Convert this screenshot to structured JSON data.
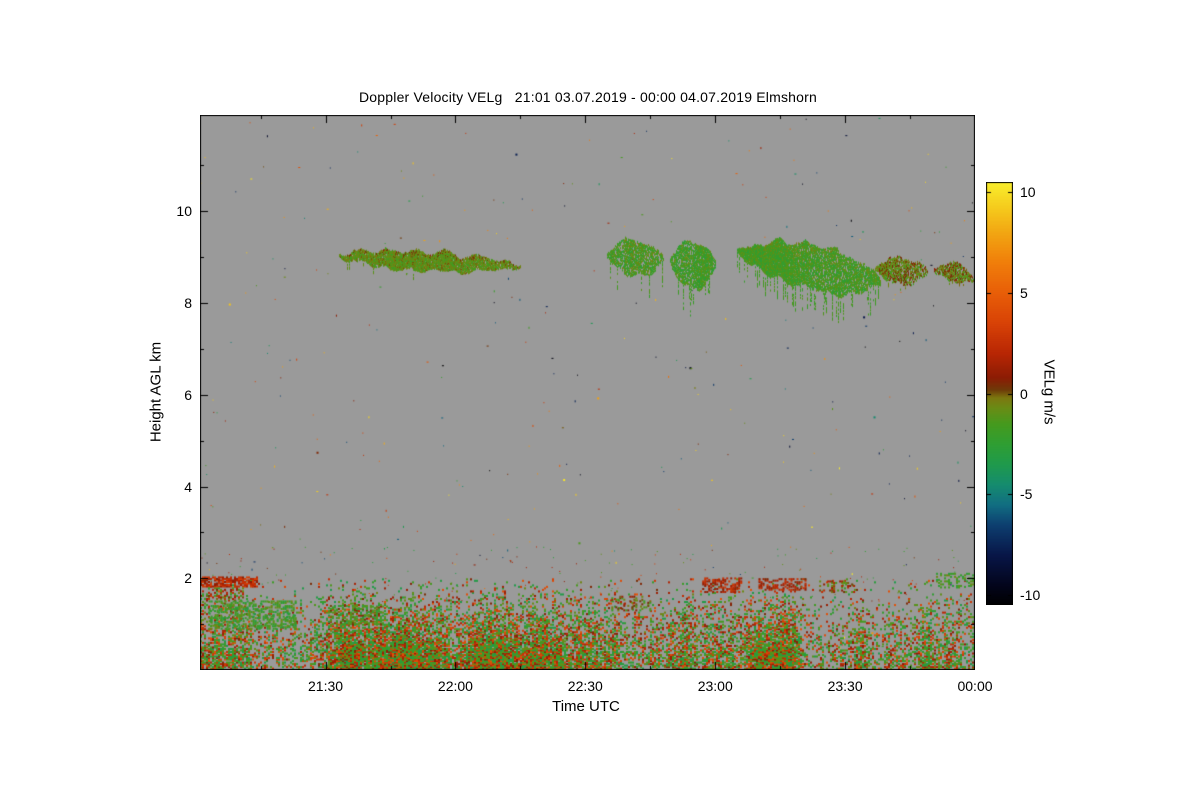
{
  "chart_data": {
    "type": "heatmap",
    "title": "Doppler Velocity VELg   21:01 03.07.2019 - 00:00 04.07.2019 Elmshorn",
    "xlabel": "Time UTC",
    "ylabel": "Height AGL km",
    "site": "Elmshorn",
    "time_start_utc": "21:01 03.07.2019",
    "time_end_utc": "00:00 04.07.2019",
    "plot_bg": "#9a9a9a",
    "frame_color": "#000000",
    "x_range_minutes": [
      0,
      179
    ],
    "x_ticks": [
      {
        "label": "21:30",
        "minute": 29
      },
      {
        "label": "22:00",
        "minute": 59
      },
      {
        "label": "22:30",
        "minute": 89
      },
      {
        "label": "23:00",
        "minute": 119
      },
      {
        "label": "23:30",
        "minute": 149
      },
      {
        "label": "00:00",
        "minute": 179
      }
    ],
    "x_minor_step_minutes": 15,
    "y_range_km": [
      0,
      12.1
    ],
    "y_ticks_km": [
      2,
      4,
      6,
      8,
      10
    ],
    "y_minor_ticks_km": [
      1,
      3,
      5,
      7,
      9,
      11
    ],
    "colorbar": {
      "label": "VELg m/s",
      "units": "m/s",
      "range": [
        -10.5,
        10.5
      ],
      "ticks": [
        10,
        5,
        0,
        -5,
        -10
      ],
      "stops": [
        [
          -10.5,
          "#000000"
        ],
        [
          -9.5,
          "#03051c"
        ],
        [
          -8.0,
          "#081648"
        ],
        [
          -6.5,
          "#0d3f70"
        ],
        [
          -5.5,
          "#116e82"
        ],
        [
          -4.5,
          "#158c6e"
        ],
        [
          -3.5,
          "#1f9a4c"
        ],
        [
          -2.5,
          "#2f9e33"
        ],
        [
          -1.5,
          "#459a1e"
        ],
        [
          -0.7,
          "#6a8c15"
        ],
        [
          -0.2,
          "#7c7810"
        ],
        [
          0.2,
          "#6e3a08"
        ],
        [
          0.8,
          "#8c1c04"
        ],
        [
          2.0,
          "#b82604"
        ],
        [
          3.5,
          "#d84206"
        ],
        [
          5.0,
          "#e85e08"
        ],
        [
          6.5,
          "#f07e0a"
        ],
        [
          8.0,
          "#f2a612"
        ],
        [
          9.2,
          "#f5ca1c"
        ],
        [
          10.5,
          "#f9ee2c"
        ]
      ]
    },
    "noise_speckle": {
      "uniform_count": 380,
      "low_level_count": 160,
      "low_level_km": [
        1.5,
        2.7
      ]
    },
    "features": {
      "boundary_layer": {
        "top_km": 2.0,
        "green_fraction": 0.58,
        "green_vel_range": [
          -3.6,
          -0.4
        ],
        "warm_vel_range": [
          0.4,
          4.5
        ],
        "density_profile": [
          [
            0.3,
            0.95
          ],
          [
            0.6,
            0.78
          ],
          [
            1.0,
            0.5
          ],
          [
            1.35,
            0.28
          ],
          [
            1.7,
            0.1
          ],
          [
            2.0,
            0.04
          ]
        ]
      },
      "bl_clumps": [
        {
          "t0": 0,
          "t1": 13,
          "km0": 1.82,
          "km1": 2.05,
          "density": 0.75,
          "v0": 0.5,
          "v1": 3.5
        },
        {
          "t0": 0,
          "t1": 10,
          "km0": 1.55,
          "km1": 1.8,
          "density": 0.35,
          "v0": -2.5,
          "v1": 2.5
        },
        {
          "t0": 2,
          "t1": 22,
          "km0": 0.9,
          "km1": 1.5,
          "density": 0.45,
          "v0": -3.2,
          "v1": -0.5
        },
        {
          "t0": 30,
          "t1": 42,
          "km0": 1.0,
          "km1": 1.42,
          "density": 0.4,
          "v0": -3.0,
          "v1": 0.5
        },
        {
          "t0": 95,
          "t1": 104,
          "km0": 1.3,
          "km1": 1.6,
          "density": 0.3,
          "v0": -2.5,
          "v1": 1.5
        },
        {
          "t0": 116,
          "t1": 125,
          "km0": 1.7,
          "km1": 2.0,
          "density": 0.5,
          "v0": 0.5,
          "v1": 3.2
        },
        {
          "t0": 129,
          "t1": 140,
          "km0": 1.75,
          "km1": 2.0,
          "density": 0.45,
          "v0": 0.3,
          "v1": 3.0
        },
        {
          "t0": 143,
          "t1": 151,
          "km0": 1.7,
          "km1": 1.95,
          "density": 0.35,
          "v0": -1.5,
          "v1": 2.5
        },
        {
          "t0": 170,
          "t1": 179,
          "km0": 1.8,
          "km1": 2.1,
          "density": 0.28,
          "v0": -3.0,
          "v1": -0.5
        }
      ],
      "clouds": [
        {
          "t0": 32,
          "t1": 74,
          "top0": 9.25,
          "top1": 8.95,
          "bot0": 8.82,
          "bot1": 8.62,
          "vel": -0.9,
          "spread": 1.0,
          "top_bias": 1.2,
          "density": 0.82,
          "streakiness": 0.25,
          "streak_prob": 0.05,
          "streak_drop": 0.15
        },
        {
          "t0": 94,
          "t1": 107,
          "top0": 9.45,
          "top1": 9.25,
          "bot0": 8.7,
          "bot1": 8.55,
          "vel": -1.6,
          "spread": 1.2,
          "top_bias": 0.4,
          "density": 0.55,
          "streakiness": 0.7,
          "streak_prob": 0.18,
          "streak_drop": 0.4
        },
        {
          "t0": 108.5,
          "t1": 119,
          "top0": 9.4,
          "top1": 9.3,
          "bot0": 8.45,
          "bot1": 8.3,
          "vel": -1.8,
          "spread": 1.1,
          "top_bias": 0.3,
          "density": 0.6,
          "streakiness": 0.65,
          "streak_prob": 0.2,
          "streak_drop": 0.5
        },
        {
          "t0": 124,
          "t1": 157,
          "top0": 9.5,
          "top1": 9.05,
          "bot0": 8.75,
          "bot1": 7.95,
          "vel": -1.7,
          "spread": 1.1,
          "top_bias": 0.8,
          "density": 0.78,
          "streakiness": 0.5,
          "streak_prob": 0.3,
          "streak_drop": 0.45
        },
        {
          "t0": 156,
          "t1": 168,
          "top0": 9.0,
          "top1": 8.9,
          "bot0": 8.5,
          "bot1": 8.35,
          "vel": -0.6,
          "spread": 1.3,
          "top_bias": 1.0,
          "density": 0.65,
          "streakiness": 0.45,
          "streak_prob": 0.1,
          "streak_drop": 0.2
        },
        {
          "t0": 169.5,
          "t1": 179,
          "top0": 8.9,
          "top1": 8.75,
          "bot0": 8.55,
          "bot1": 8.4,
          "vel": -0.5,
          "spread": 1.3,
          "top_bias": 0.8,
          "density": 0.6,
          "streakiness": 0.4,
          "streak_prob": 0.08,
          "streak_drop": 0.2
        }
      ]
    }
  }
}
